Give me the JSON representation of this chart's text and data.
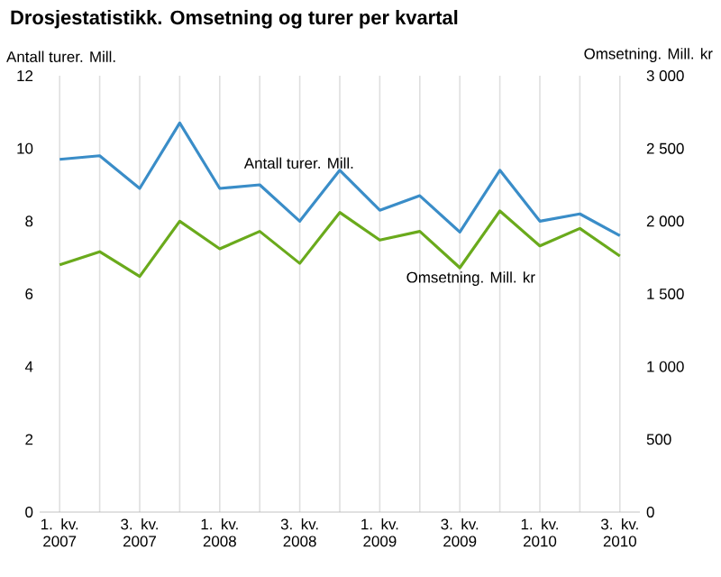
{
  "chart_data": {
    "type": "line",
    "title": "Drosjestatistikk. Omsetning og turer per kvartal",
    "ylabel": "Antall turer. Mill.",
    "y2label": "Omsetning. Mill. kr",
    "categories": [
      "1. kv. 2007",
      null,
      "3. kv. 2007",
      null,
      "1. kv. 2008",
      null,
      "3. kv. 2008",
      null,
      "1. kv. 2009",
      null,
      "3. kv. 2009",
      null,
      "1. kv. 2010",
      null,
      "3. kv. 2010"
    ],
    "series": [
      {
        "name": "Antall turer. Mill.",
        "color": "#3a8dc8",
        "values": [
          9.7,
          9.8,
          8.9,
          10.7,
          8.9,
          9.0,
          8.0,
          9.4,
          8.3,
          8.7,
          7.7,
          9.4,
          8.0,
          8.2,
          7.6
        ]
      },
      {
        "name": "Omsetning. Mill. kr",
        "color": "#6aaa1c",
        "axis": "y2",
        "values": [
          1700,
          1790,
          1620,
          2000,
          1810,
          1930,
          1710,
          2060,
          1870,
          1930,
          1680,
          2070,
          1830,
          1950,
          1760
        ]
      }
    ],
    "ylim": [
      0,
      12
    ],
    "yticks": [
      0,
      2,
      4,
      6,
      8,
      10,
      12
    ],
    "y2lim": [
      0,
      3000
    ],
    "y2ticks": [
      0,
      {
        "value": 500,
        "label": "500"
      },
      {
        "value": 1000,
        "label": "1 000"
      },
      {
        "value": 1500,
        "label": "1 500"
      },
      {
        "value": 2000,
        "label": "2 000"
      },
      {
        "value": 2500,
        "label": "2 500"
      },
      {
        "value": 3000,
        "label": "3 000"
      }
    ],
    "grid": true,
    "marker": "none",
    "line_style": "solid"
  }
}
